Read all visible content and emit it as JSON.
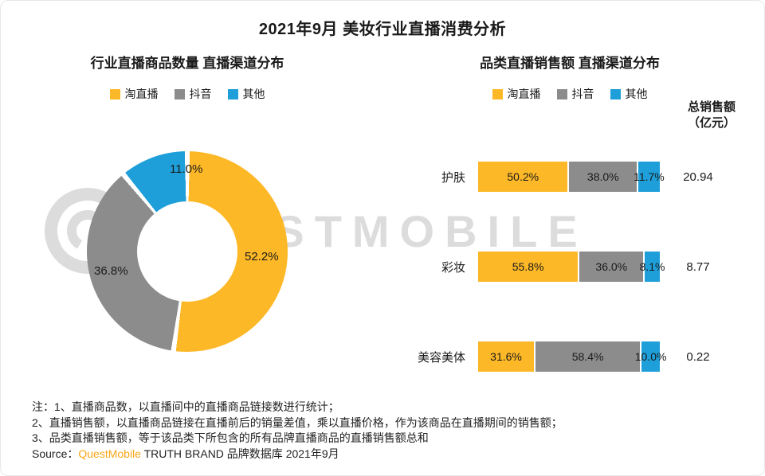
{
  "title": "2021年9月 美妆行业直播消费分析",
  "colors": {
    "taobao": "#FDB827",
    "douyin": "#8C8C8C",
    "other": "#1E9FD9",
    "brand": "#F9A61A",
    "watermark": "#DCDCDC"
  },
  "legend": {
    "items": [
      {
        "label": "淘直播",
        "key": "taobao"
      },
      {
        "label": "抖音",
        "key": "douyin"
      },
      {
        "label": "其他",
        "key": "other"
      }
    ]
  },
  "left_chart": {
    "subtitle": "行业直播商品数量 直播渠道分布"
  },
  "right_chart": {
    "subtitle": "品类直播销售额 直播渠道分布",
    "totals_header_line1": "总销售额",
    "totals_header_line2": "（亿元）"
  },
  "chart_data": [
    {
      "type": "pie",
      "donut": true,
      "title": "行业直播商品数量 直播渠道分布",
      "labels": [
        "淘直播",
        "抖音",
        "其他"
      ],
      "values": [
        52.2,
        36.8,
        11.0
      ],
      "unit": "percent",
      "legend_position": "top"
    },
    {
      "type": "bar",
      "orientation": "horizontal",
      "stacked": true,
      "title": "品类直播销售额 直播渠道分布",
      "categories": [
        "护肤",
        "彩妆",
        "美容美体"
      ],
      "series": [
        {
          "name": "淘直播",
          "values": [
            50.2,
            55.8,
            31.6
          ]
        },
        {
          "name": "抖音",
          "values": [
            38.0,
            36.0,
            58.4
          ]
        },
        {
          "name": "其他",
          "values": [
            11.7,
            8.1,
            10.0
          ]
        }
      ],
      "unit": "percent",
      "totals_label": "总销售额（亿元）",
      "totals": [
        20.94,
        8.77,
        0.22
      ],
      "legend_position": "top"
    }
  ],
  "notes": [
    "注：1、直播商品数，以直播间中的直播商品链接数进行统计；",
    "2、直播销售额，以直播商品链接在直播前后的销量差值，乘以直播价格，作为该商品在直播期间的销售额；",
    "3、品类直播销售额，等于该品类下所包含的所有品牌直播商品的直播销售额总和"
  ],
  "source": {
    "prefix": "Source：",
    "brand": "QuestMobile",
    "suffix": " TRUTH BRAND 品牌数据库 2021年9月"
  },
  "watermark": {
    "text": "QUESTMOBILE"
  }
}
